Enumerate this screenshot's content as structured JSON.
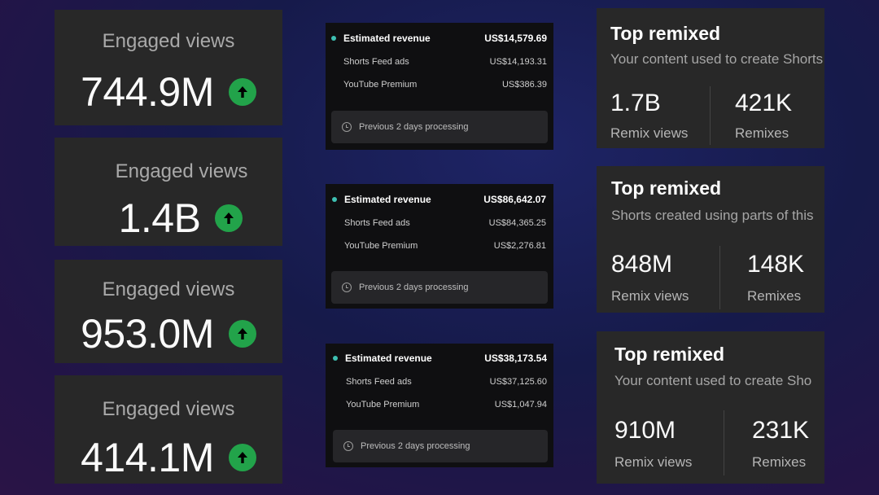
{
  "engaged": [
    {
      "title": "Engaged views",
      "value": "744.9M",
      "trend_icon": "arrow-up-icon"
    },
    {
      "title": "Engaged views",
      "value": "1.4B",
      "trend_icon": "arrow-up-icon"
    },
    {
      "title": "Engaged views",
      "value": "953.0M",
      "trend_icon": "arrow-up-icon"
    },
    {
      "title": "Engaged views",
      "value": "414.1M",
      "trend_icon": "arrow-up-icon"
    }
  ],
  "revenue": [
    {
      "title": "Estimated revenue",
      "total": "US$14,579.69",
      "rows": [
        {
          "label": "Shorts Feed ads",
          "value": "US$14,193.31"
        },
        {
          "label": "YouTube Premium",
          "value": "US$386.39"
        }
      ],
      "note": "Previous 2 days processing"
    },
    {
      "title": "Estimated revenue",
      "total": "US$86,642.07",
      "rows": [
        {
          "label": "Shorts Feed ads",
          "value": "US$84,365.25"
        },
        {
          "label": "YouTube Premium",
          "value": "US$2,276.81"
        }
      ],
      "note": "Previous 2 days processing"
    },
    {
      "title": "Estimated revenue",
      "total": "US$38,173.54",
      "rows": [
        {
          "label": "Shorts Feed ads",
          "value": "US$37,125.60"
        },
        {
          "label": "YouTube Premium",
          "value": "US$1,047.94"
        }
      ],
      "note": "Previous 2 days processing"
    }
  ],
  "remixed": [
    {
      "title": "Top remixed",
      "subtitle": "Your content used to create Shorts ·",
      "views": "1.7B",
      "views_label": "Remix views",
      "remixes": "421K",
      "remixes_label": "Remixes"
    },
    {
      "title": "Top remixed",
      "subtitle": "Shorts created using parts of this",
      "views": "848M",
      "views_label": "Remix views",
      "remixes": "148K",
      "remixes_label": "Remixes"
    },
    {
      "title": "Top remixed",
      "subtitle": "Your content used to create Sho",
      "views": "910M",
      "views_label": "Remix views",
      "remixes": "231K",
      "remixes_label": "Remixes"
    }
  ],
  "colors": {
    "accent_green": "#22a34a",
    "dot_teal": "#3ec0b2"
  }
}
